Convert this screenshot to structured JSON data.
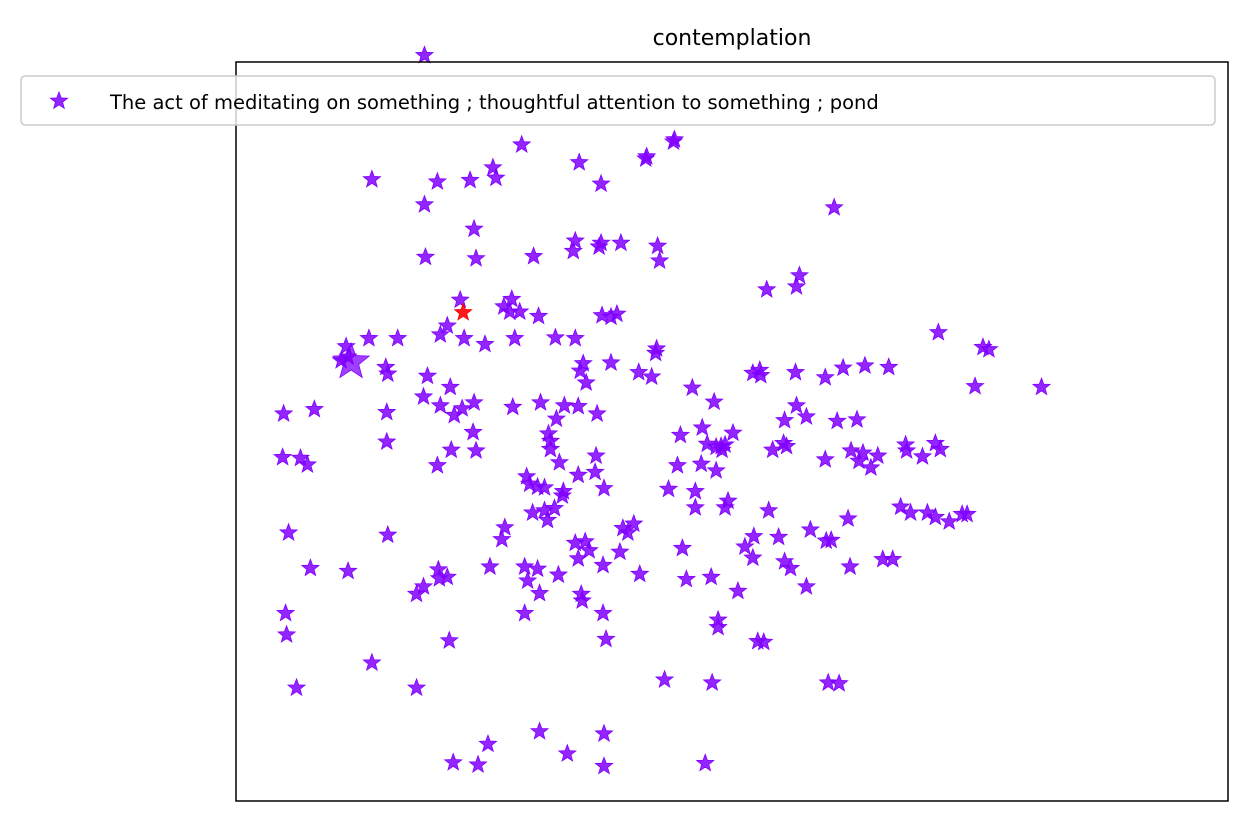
{
  "chart_data": {
    "type": "scatter",
    "title": "contemplation",
    "xlabel": "",
    "ylabel": "",
    "grid": false,
    "legend_placement": "top",
    "xlim": [
      0,
      1000
    ],
    "ylim": [
      0,
      1000
    ],
    "series": [
      {
        "name": "The act of meditating on something ; thoughtful attention to something ; pond",
        "color": "#8000ff",
        "marker": "star",
        "points": [
          [
            190,
            1009
          ],
          [
            288,
            888
          ],
          [
            442,
            895
          ],
          [
            441,
            892
          ],
          [
            414,
            872
          ],
          [
            413,
            869
          ],
          [
            346,
            864
          ],
          [
            259,
            857
          ],
          [
            137,
            841
          ],
          [
            203,
            838
          ],
          [
            236,
            840
          ],
          [
            262,
            843
          ],
          [
            368,
            835
          ],
          [
            190,
            807
          ],
          [
            603,
            803
          ],
          [
            240,
            774
          ],
          [
            342,
            758
          ],
          [
            388,
            755
          ],
          [
            368,
            755
          ],
          [
            425,
            751
          ],
          [
            340,
            744
          ],
          [
            366,
            750
          ],
          [
            300,
            737
          ],
          [
            191,
            736
          ],
          [
            427,
            731
          ],
          [
            242,
            734
          ],
          [
            568,
            711
          ],
          [
            535,
            692
          ],
          [
            565,
            696
          ],
          [
            226,
            678
          ],
          [
            278,
            679
          ],
          [
            270,
            669
          ],
          [
            276,
            662
          ],
          [
            213,
            643
          ],
          [
            286,
            662
          ],
          [
            305,
            656
          ],
          [
            378,
            655
          ],
          [
            384,
            659
          ],
          [
            369,
            657
          ],
          [
            206,
            631
          ],
          [
            230,
            626
          ],
          [
            251,
            618
          ],
          [
            281,
            626
          ],
          [
            322,
            627
          ],
          [
            342,
            626
          ],
          [
            424,
            612
          ],
          [
            423,
            606
          ],
          [
            378,
            593
          ],
          [
            163,
            626
          ],
          [
            708,
            634
          ],
          [
            753,
            614
          ],
          [
            759,
            611
          ],
          [
            111,
            615
          ],
          [
            134,
            626
          ],
          [
            106,
            596
          ],
          [
            113,
            601
          ],
          [
            350,
            592
          ],
          [
            347,
            582
          ],
          [
            521,
            579
          ],
          [
            529,
            576
          ],
          [
            564,
            580
          ],
          [
            594,
            573
          ],
          [
            612,
            586
          ],
          [
            634,
            589
          ],
          [
            658,
            587
          ],
          [
            151,
            587
          ],
          [
            153,
            578
          ],
          [
            193,
            575
          ],
          [
            216,
            560
          ],
          [
            406,
            580
          ],
          [
            419,
            574
          ],
          [
            353,
            566
          ],
          [
            460,
            559
          ],
          [
            528,
            583
          ],
          [
            745,
            561
          ],
          [
            812,
            560
          ],
          [
            189,
            547
          ],
          [
            206,
            535
          ],
          [
            240,
            539
          ],
          [
            228,
            531
          ],
          [
            220,
            522
          ],
          [
            239,
            499
          ],
          [
            152,
            526
          ],
          [
            279,
            533
          ],
          [
            307,
            539
          ],
          [
            331,
            535
          ],
          [
            345,
            534
          ],
          [
            323,
            517
          ],
          [
            364,
            524
          ],
          [
            482,
            540
          ],
          [
            565,
            535
          ],
          [
            553,
            515
          ],
          [
            575,
            520
          ],
          [
            606,
            514
          ],
          [
            626,
            516
          ],
          [
            48,
            524
          ],
          [
            79,
            530
          ],
          [
            152,
            486
          ],
          [
            501,
            498
          ],
          [
            448,
            495
          ],
          [
            470,
            505
          ],
          [
            315,
            497
          ],
          [
            317,
            487
          ],
          [
            475,
            483
          ],
          [
            484,
            479
          ],
          [
            489,
            480
          ],
          [
            493,
            482
          ],
          [
            490,
            475
          ],
          [
            541,
            475
          ],
          [
            552,
            484
          ],
          [
            555,
            480
          ],
          [
            675,
            482
          ],
          [
            705,
            484
          ],
          [
            710,
            476
          ],
          [
            692,
            466
          ],
          [
            676,
            474
          ],
          [
            647,
            467
          ],
          [
            620,
            474
          ],
          [
            594,
            462
          ],
          [
            628,
            460
          ],
          [
            632,
            471
          ],
          [
            640,
            451
          ],
          [
            217,
            475
          ],
          [
            242,
            474
          ],
          [
            317,
            476
          ],
          [
            326,
            458
          ],
          [
            363,
            467
          ],
          [
            469,
            456
          ],
          [
            445,
            454
          ],
          [
            484,
            447
          ],
          [
            203,
            454
          ],
          [
            65,
            464
          ],
          [
            72,
            455
          ],
          [
            47,
            465
          ],
          [
            293,
            439
          ],
          [
            296,
            429
          ],
          [
            304,
            425
          ],
          [
            329,
            413
          ],
          [
            345,
            441
          ],
          [
            330,
            419
          ],
          [
            321,
            396
          ],
          [
            311,
            424
          ],
          [
            362,
            445
          ],
          [
            371,
            423
          ],
          [
            436,
            422
          ],
          [
            463,
            419
          ],
          [
            299,
            390
          ],
          [
            311,
            393
          ],
          [
            314,
            380
          ],
          [
            390,
            369
          ],
          [
            395,
            363
          ],
          [
            401,
            375
          ],
          [
            387,
            337
          ],
          [
            463,
            397
          ],
          [
            496,
            406
          ],
          [
            493,
            397
          ],
          [
            537,
            393
          ],
          [
            579,
            367
          ],
          [
            595,
            352
          ],
          [
            600,
            353
          ],
          [
            670,
            398
          ],
          [
            680,
            390
          ],
          [
            697,
            390
          ],
          [
            705,
            384
          ],
          [
            719,
            378
          ],
          [
            732,
            388
          ],
          [
            737,
            388
          ],
          [
            53,
            363
          ],
          [
            153,
            360
          ],
          [
            271,
            370
          ],
          [
            268,
            354
          ],
          [
            352,
            351
          ],
          [
            342,
            349
          ],
          [
            356,
            339
          ],
          [
            521,
            329
          ],
          [
            522,
            358
          ],
          [
            547,
            357
          ],
          [
            575,
            290
          ],
          [
            619,
            317
          ],
          [
            652,
            327
          ],
          [
            662,
            327
          ],
          [
            617,
            382
          ],
          [
            553,
            324
          ],
          [
            513,
            344
          ],
          [
            559,
            315
          ],
          [
            506,
            284
          ],
          [
            454,
            300
          ],
          [
            450,
            342
          ],
          [
            407,
            307
          ],
          [
            304,
            314
          ],
          [
            291,
            317
          ],
          [
            205,
            301
          ],
          [
            213,
            303
          ],
          [
            325,
            306
          ],
          [
            370,
            319
          ],
          [
            345,
            328
          ],
          [
            349,
            271
          ],
          [
            348,
            280
          ],
          [
            294,
            298
          ],
          [
            306,
            281
          ],
          [
            204,
            313
          ],
          [
            256,
            317
          ],
          [
            50,
            254
          ],
          [
            75,
            315
          ],
          [
            113,
            311
          ],
          [
            51,
            225
          ],
          [
            189,
            290
          ],
          [
            182,
            280
          ],
          [
            291,
            254
          ],
          [
            370,
            254
          ],
          [
            486,
            245
          ],
          [
            479,
            303
          ],
          [
            373,
            219
          ],
          [
            526,
            216
          ],
          [
            532,
            215
          ],
          [
            486,
            235
          ],
          [
            597,
            160
          ],
          [
            608,
            159
          ],
          [
            480,
            160
          ],
          [
            61,
            153
          ],
          [
            182,
            153
          ],
          [
            137,
            187
          ],
          [
            215,
            217
          ],
          [
            432,
            164
          ],
          [
            306,
            94
          ],
          [
            254,
            77
          ],
          [
            334,
            64
          ],
          [
            371,
            91
          ],
          [
            219,
            52
          ],
          [
            244,
            49
          ],
          [
            371,
            47
          ],
          [
            473,
            51
          ]
        ]
      }
    ],
    "highlight_points": [
      {
        "x": 229,
        "y": 661,
        "color": "#ff0000"
      }
    ],
    "emphasis_points": [
      {
        "x": 116,
        "y": 594
      }
    ]
  }
}
